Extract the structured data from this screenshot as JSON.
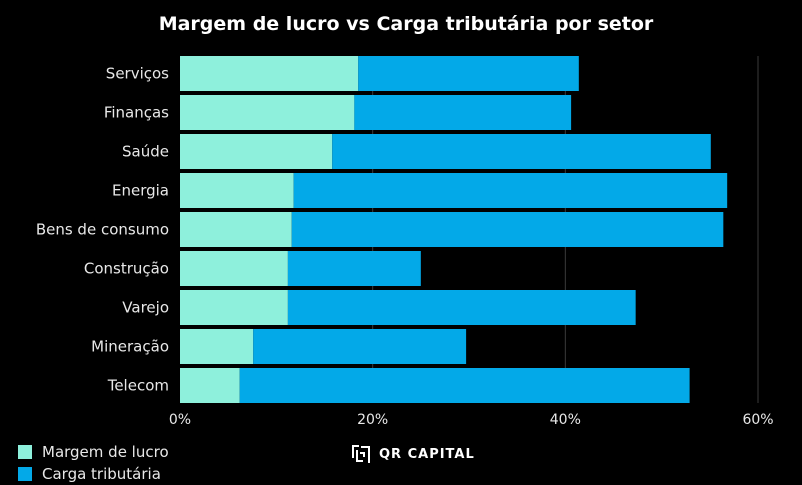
{
  "chart_data": {
    "type": "bar",
    "orientation": "horizontal",
    "stacked": true,
    "title": "Margem de lucro vs Carga tributária por setor",
    "categories": [
      "Serviços",
      "Finanças",
      "Saúde",
      "Energia",
      "Bens de consumo",
      "Construção",
      "Varejo",
      "Mineração",
      "Telecom"
    ],
    "series": [
      {
        "name": "Margem de lucro",
        "color": "#8ef0dc",
        "values": [
          18.5,
          18.1,
          15.8,
          11.8,
          11.6,
          11.2,
          11.2,
          7.6,
          6.2
        ]
      },
      {
        "name": "Carga tributária",
        "color": "#03a9e8",
        "values": [
          22.9,
          22.5,
          39.3,
          45.0,
          44.8,
          13.8,
          36.1,
          22.1,
          46.7
        ]
      }
    ],
    "xlim": [
      0,
      60
    ],
    "xticks": [
      "0%",
      "20%",
      "40%",
      "60%"
    ],
    "xtick_values": [
      0,
      20,
      40,
      60
    ],
    "grid": "vertical",
    "legend_position": "bottom-left"
  },
  "brand": {
    "name": "QR CAPITAL"
  }
}
